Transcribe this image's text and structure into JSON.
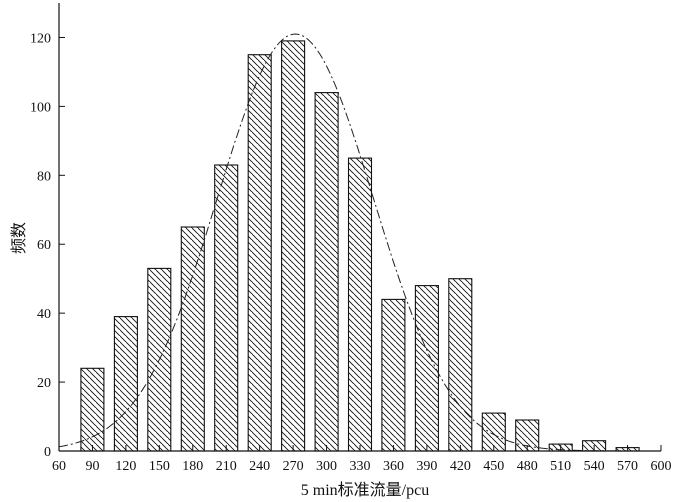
{
  "chart_data": {
    "type": "bar",
    "title": "",
    "xlabel": "5 min标准流量/pcu",
    "ylabel": "频数",
    "xlim": [
      60,
      600
    ],
    "ylim": [
      0,
      130
    ],
    "x_ticks": [
      60,
      90,
      120,
      150,
      180,
      210,
      240,
      270,
      300,
      330,
      360,
      390,
      420,
      450,
      480,
      510,
      540,
      570,
      600
    ],
    "y_ticks": [
      0,
      20,
      40,
      60,
      80,
      100,
      120
    ],
    "categories": [
      90,
      120,
      150,
      180,
      210,
      240,
      270,
      300,
      330,
      360,
      390,
      420,
      450,
      480,
      510,
      540,
      570
    ],
    "values": [
      24,
      39,
      53,
      65,
      83,
      115,
      119,
      104,
      85,
      44,
      48,
      50,
      11,
      9,
      2,
      3,
      1
    ],
    "bar_fill": "diagonal-hatch",
    "fit_curve": {
      "type": "normal",
      "peak_x": 272,
      "peak_y": 121,
      "sd": 70,
      "style": "dash-dot"
    },
    "grid": false,
    "legend": "none"
  },
  "colors": {
    "ink": "#111111",
    "background": "#ffffff"
  }
}
